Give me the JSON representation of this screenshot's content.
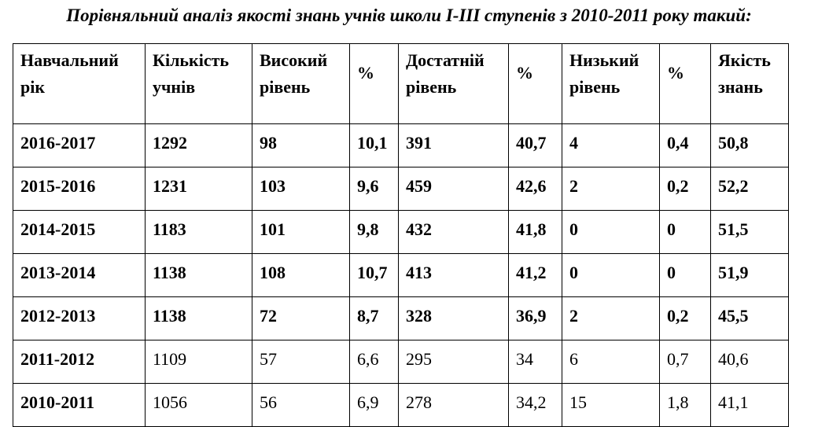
{
  "title": "Порівняльний аналіз якості знань учнів школи І-ІІІ ступенів з 2010-2011 року такий:",
  "table": {
    "headers": [
      [
        "Навчальний",
        "рік"
      ],
      [
        "Кількість",
        "учнів"
      ],
      [
        "Високий",
        "рівень"
      ],
      [
        "%",
        ""
      ],
      [
        "Достатній",
        "рівень"
      ],
      [
        "%",
        ""
      ],
      [
        "Низький",
        "рівень"
      ],
      [
        "%",
        ""
      ],
      [
        "Якість",
        "знань"
      ]
    ],
    "rows": [
      [
        "2016-2017",
        "1292",
        "98",
        "10,1",
        "391",
        "40,7",
        "4",
        "0,4",
        "50,8"
      ],
      [
        "2015-2016",
        "1231",
        "103",
        "9,6",
        "459",
        "42,6",
        "2",
        "0,2",
        "52,2"
      ],
      [
        "2014-2015",
        "1183",
        "101",
        "9,8",
        "432",
        "41,8",
        "0",
        "0",
        "51,5"
      ],
      [
        "2013-2014",
        "1138",
        "108",
        "10,7",
        "413",
        "41,2",
        "0",
        "0",
        "51,9"
      ],
      [
        "2012-2013",
        "1138",
        "72",
        "8,7",
        "328",
        "36,9",
        "2",
        "0,2",
        "45,5"
      ],
      [
        "2011-2012",
        "1109",
        "57",
        "6,6",
        "295",
        "34",
        "6",
        "0,7",
        "40,6"
      ],
      [
        "2010-2011",
        "1056",
        "56",
        "6,9",
        "278",
        "34,2",
        "15",
        "1,8",
        "41,1"
      ]
    ],
    "bold_rows": [
      0,
      1,
      2,
      3,
      4
    ]
  }
}
